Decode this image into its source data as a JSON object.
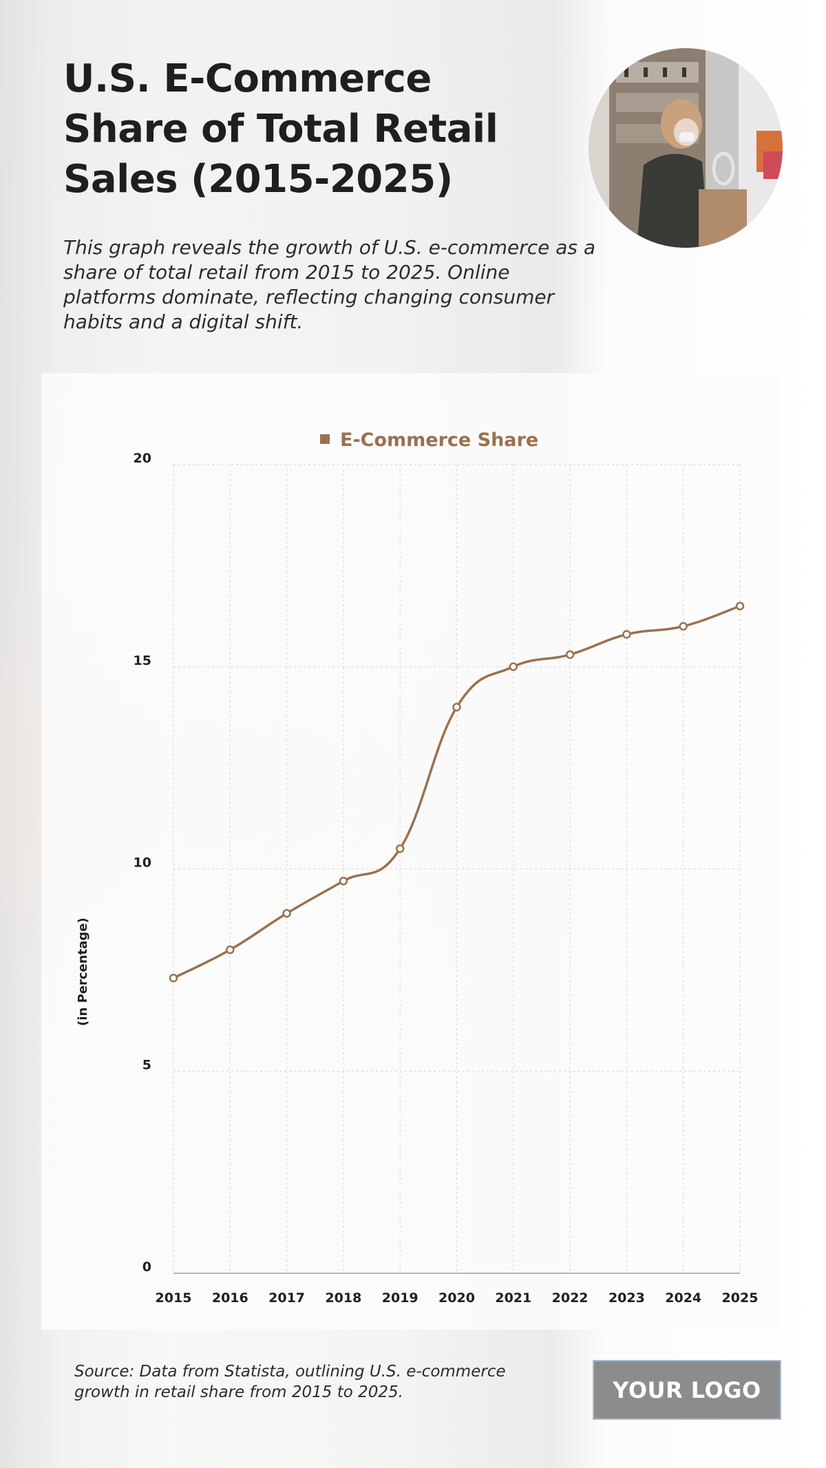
{
  "header": {
    "title": "U.S. E-Commerce Share of Total Retail Sales (2015-2025)",
    "subtitle": "This graph reveals the growth of U.S. e-commerce as a share of total retail from 2015 to 2025. Online platforms dominate, reflecting changing consumer habits and a digital shift."
  },
  "chart_data": {
    "type": "line",
    "x": [
      "2015",
      "2016",
      "2017",
      "2018",
      "2019",
      "2020",
      "2021",
      "2022",
      "2023",
      "2024",
      "2025"
    ],
    "series": [
      {
        "name": "E-Commerce Share",
        "values": [
          7.3,
          8.0,
          8.9,
          9.7,
          10.5,
          14.0,
          15.0,
          15.3,
          15.8,
          16.0,
          16.5
        ]
      }
    ],
    "ylabel": "(in Percentage)",
    "xlabel": "",
    "ylim": [
      0,
      20
    ],
    "yticks": [
      0,
      5,
      10,
      15,
      20
    ],
    "grid": true,
    "legend_position": "top-center",
    "colors": {
      "line": "#9a7150",
      "marker_fill": "#ffffff",
      "grid": "#d9d9d9",
      "axis": "#9e9e9e"
    }
  },
  "footer": {
    "source": "Source: Data from Statista, outlining U.S. e-commerce growth in retail share from 2015 to 2025.",
    "logo": "YOUR LOGO"
  },
  "photo": {
    "icon": "shopper-photo"
  }
}
